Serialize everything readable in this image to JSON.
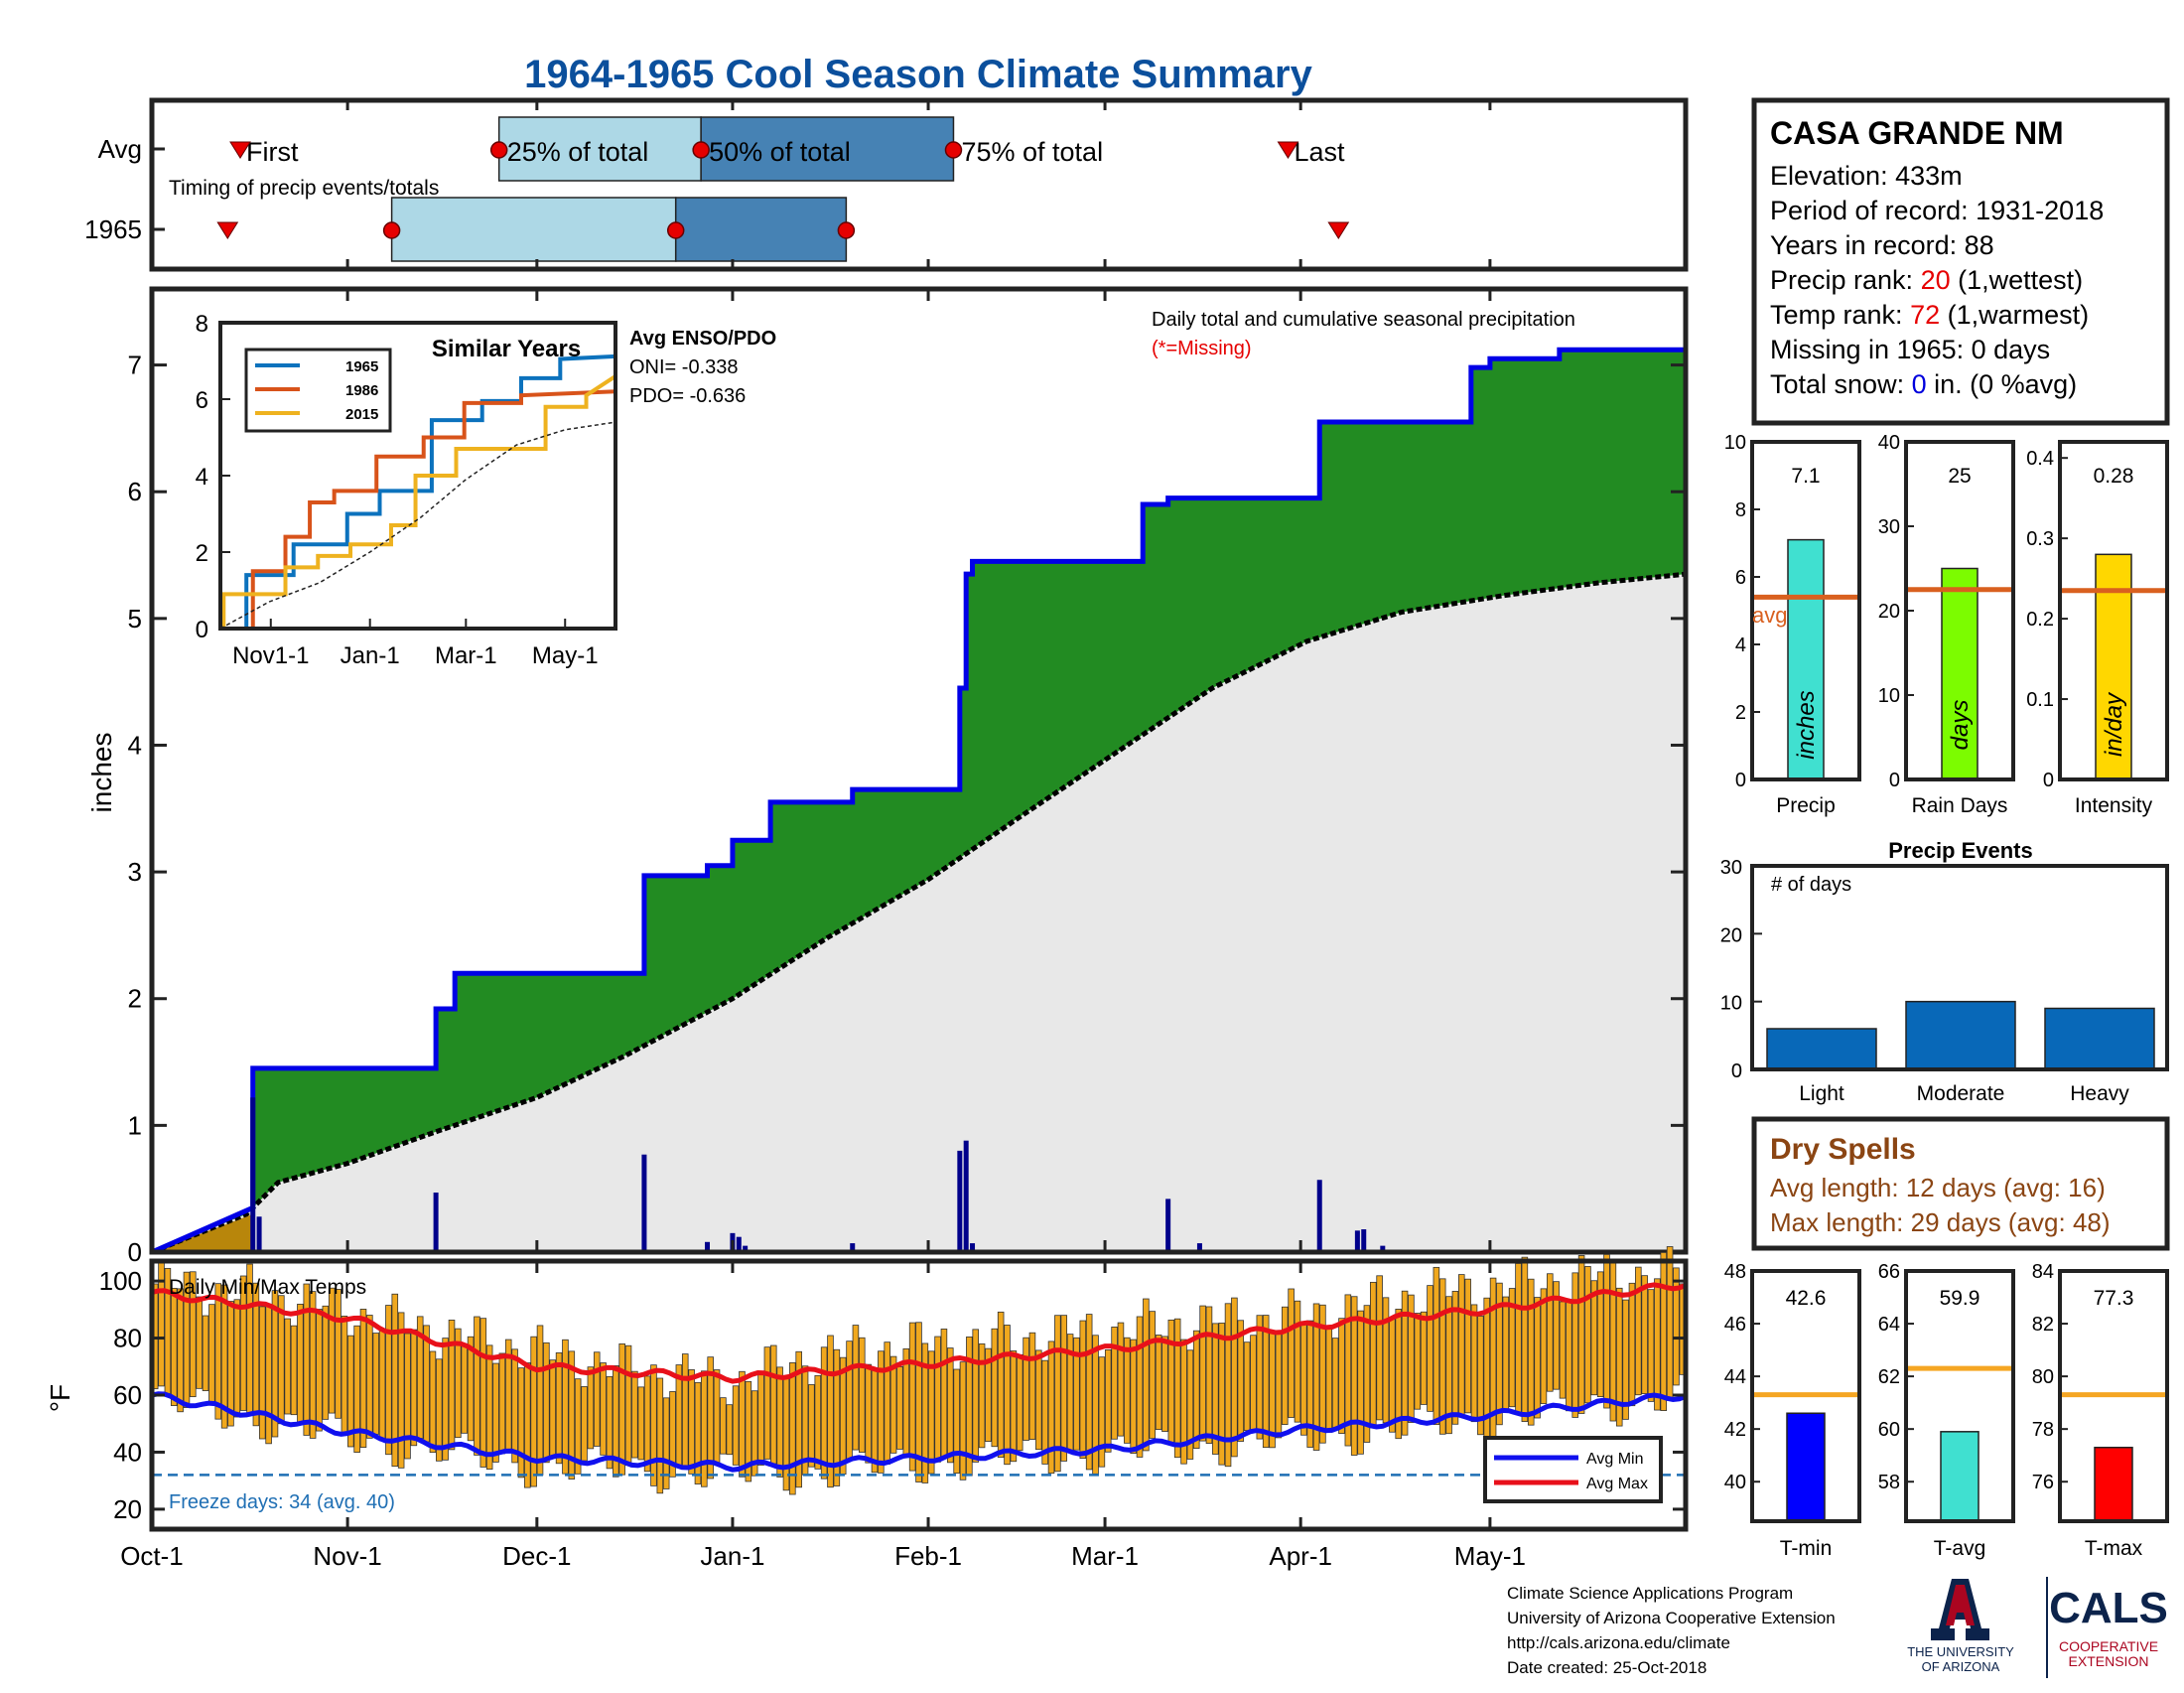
{
  "title": "1964-1965 Cool Season Climate Summary",
  "colors": {
    "title": "#0b4f9c",
    "cum_green": "#228b22",
    "cum_avg_fill": "#e8e8e8",
    "early_fill": "#b8860b",
    "line_blue": "#0000e6",
    "bar_navy": "#00008b",
    "temp_bar": "#f0a81e",
    "avg_max": "#e8101a",
    "avg_min": "#1010ee",
    "freeze": "#1f6fb4",
    "timing_light": "#add8e6",
    "timing_dark": "#4682b4",
    "marker_red": "#e60000",
    "rank_red": "#e60000",
    "snow_blue": "#0000dd",
    "dry_brown": "#8b4513",
    "avg_line_precip": "#d9601f",
    "avg_line_temp": "#f5a623",
    "precip_bar": "#40e0d0",
    "raindays_bar": "#7cfc00",
    "intensity_bar": "#ffd700",
    "event_bar": "#0868b8",
    "tmin_bar": "#0000ff",
    "tavg_bar": "#40e0d0",
    "tmax_bar": "#ff0000",
    "sim_1965": "#0c72bd",
    "sim_1986": "#d8531a",
    "sim_2015": "#eeb21f",
    "ua_red": "#ab0520",
    "ua_navy": "#0c234b"
  },
  "timing": {
    "rows": [
      "Avg",
      "1965"
    ],
    "avg_labels": [
      "First",
      "25% of total",
      "50% of total",
      "75% of total",
      "Last"
    ],
    "subtitle": "Timing of precip events/totals",
    "avg_days": {
      "first": 14,
      "q25": 55,
      "q50": 87,
      "q75": 127,
      "last": 180
    },
    "yr_days": {
      "first": 12,
      "q25": 38,
      "q50": 83,
      "q75": 110,
      "last": 188
    }
  },
  "station": {
    "name": "CASA GRANDE NM",
    "elevation": "Elevation: 433m",
    "period": "Period of record: 1931-2018",
    "years": "Years in record: 88",
    "precip_rank_pre": "Precip rank: ",
    "precip_rank": "20",
    "precip_rank_post": " (1,wettest)",
    "temp_rank_pre": "Temp rank: ",
    "temp_rank": "72",
    "temp_rank_post": " (1,warmest)",
    "missing": "Missing in 1965: 0 days",
    "snow_pre": "Total snow: ",
    "snow_val": "0",
    "snow_post": " in. (0 %avg)"
  },
  "main": {
    "ylabel": "inches",
    "note": "Daily total and cumulative seasonal precipitation",
    "missing_note": "(*=Missing)",
    "yticks": [
      "0",
      "1",
      "2",
      "3",
      "4",
      "5",
      "6",
      "7"
    ],
    "xticks": [
      "Oct-1",
      "Nov-1",
      "Dec-1",
      "Jan-1",
      "Feb-1",
      "Mar-1",
      "Apr-1",
      "May-1"
    ]
  },
  "inset": {
    "title": "Similar Years",
    "legend": [
      "1965",
      "1986",
      "2015"
    ],
    "yticks": [
      "0",
      "2",
      "4",
      "6",
      "8"
    ],
    "xticks": [
      "Nov1-1",
      "Jan-1",
      "Mar-1",
      "May-1"
    ],
    "enso_title": "Avg ENSO/PDO",
    "oni": "ONI= -0.338",
    "pdo": "PDO= -0.636"
  },
  "temps": {
    "title": "Daily Min/Max Temps",
    "ylabel": "°F",
    "yticks": [
      "20",
      "40",
      "60",
      "80",
      "100"
    ],
    "freeze_label": "Freeze days: 34 (avg. 40)",
    "freeze_line": 32,
    "legend": [
      "Avg Min",
      "Avg Max"
    ]
  },
  "bars_summary": {
    "precip": {
      "label": "Precip",
      "value": "7.1",
      "vertical": "inches",
      "ticks": [
        "0",
        "2",
        "4",
        "6",
        "8",
        "10"
      ],
      "avg_text": "avg"
    },
    "raindays": {
      "label": "Rain Days",
      "value": "25",
      "vertical": "days",
      "ticks": [
        "0",
        "10",
        "20",
        "30",
        "40"
      ]
    },
    "intensity": {
      "label": "Intensity",
      "value": "0.28",
      "vertical": "in/day",
      "ticks": [
        "0",
        "0.1",
        "0.2",
        "0.3",
        "0.4"
      ]
    }
  },
  "events": {
    "title": "Precip Events",
    "subtitle": "# of days",
    "ticks": [
      "0",
      "10",
      "20",
      "30"
    ],
    "categories": [
      "Light",
      "Moderate",
      "Heavy"
    ]
  },
  "dry": {
    "title": "Dry Spells",
    "avg": "Avg length: 12 days (avg: 16)",
    "max": "Max length: 29 days (avg: 48)"
  },
  "temp_summary": {
    "tmin": {
      "label": "T-min",
      "value": "42.6",
      "ticks": [
        "40",
        "42",
        "44",
        "46",
        "48"
      ]
    },
    "tavg": {
      "label": "T-avg",
      "value": "59.9",
      "ticks": [
        "58",
        "60",
        "62",
        "64",
        "66"
      ]
    },
    "tmax": {
      "label": "T-max",
      "value": "77.3",
      "ticks": [
        "76",
        "78",
        "80",
        "82",
        "84"
      ]
    }
  },
  "footer": {
    "lines": [
      "Climate Science Applications Program",
      "University of Arizona Cooperative Extension",
      "http://cals.arizona.edu/climate",
      " Date created: 25-Oct-2018"
    ],
    "ua_line1": "THE UNIVERSITY",
    "ua_line2": "OF ARIZONA",
    "cals": "CALS",
    "coop1": "COOPERATIVE",
    "coop2": "EXTENSION"
  },
  "chart_data": [
    {
      "type": "area",
      "title": "Daily total and cumulative seasonal precipitation",
      "ylabel": "inches",
      "ylim": [
        0,
        7.6
      ],
      "x_unit": "day of season (0 = Oct-1)",
      "xlim": [
        0,
        243
      ],
      "series": [
        {
          "name": "1965",
          "x": [
            0,
            16,
            16,
            45,
            45,
            48,
            48,
            78,
            78,
            88,
            88,
            92,
            92,
            98,
            98,
            111,
            111,
            128,
            128,
            129,
            129,
            130,
            130,
            157,
            157,
            161,
            161,
            185,
            185,
            209,
            209,
            212,
            212,
            223,
            223,
            243
          ],
          "y": [
            0,
            0.35,
            1.45,
            1.45,
            1.92,
            1.92,
            2.2,
            2.2,
            2.97,
            2.97,
            3.05,
            3.05,
            3.25,
            3.25,
            3.55,
            3.55,
            3.65,
            3.65,
            4.45,
            4.45,
            5.35,
            5.35,
            5.45,
            5.45,
            5.9,
            5.9,
            5.95,
            5.95,
            6.55,
            6.55,
            6.98,
            6.98,
            7.05,
            7.05,
            7.12,
            7.12
          ]
        },
        {
          "x": [
            0,
            15,
            20,
            31,
            45,
            61,
            75,
            92,
            107,
            123,
            138,
            153,
            168,
            183,
            198,
            214,
            229,
            243
          ],
          "y": [
            0,
            0.3,
            0.55,
            0.7,
            0.95,
            1.22,
            1.55,
            2.0,
            2.48,
            2.94,
            3.45,
            3.95,
            4.45,
            4.82,
            5.05,
            5.18,
            5.28,
            5.35
          ]
        }
      ],
      "daily_bars": {
        "x": [
          16,
          17,
          45,
          78,
          88,
          92,
          93,
          94,
          111,
          128,
          129,
          130,
          161,
          166,
          185,
          191,
          192,
          195
        ],
        "y": [
          1.22,
          0.28,
          0.47,
          0.77,
          0.08,
          0.15,
          0.12,
          0.05,
          0.07,
          0.8,
          0.88,
          0.07,
          0.42,
          0.07,
          0.57,
          0.17,
          0.18,
          0.05
        ]
      }
    },
    {
      "type": "line",
      "title": "Similar Years",
      "ylim": [
        0,
        8
      ],
      "x_unit": "day of season (0 = Oct-1)",
      "xlim": [
        0,
        243
      ],
      "series": [
        {
          "name": "1965",
          "x": [
            0,
            16,
            16,
            45,
            45,
            78,
            78,
            98,
            98,
            130,
            130,
            161,
            161,
            185,
            185,
            209,
            209,
            243
          ],
          "y": [
            0,
            0,
            1.4,
            1.4,
            2.2,
            2.2,
            3.0,
            3.0,
            3.6,
            3.6,
            5.45,
            5.45,
            5.95,
            5.95,
            6.55,
            6.55,
            7.05,
            7.12
          ]
        },
        {
          "name": "1986",
          "x": [
            0,
            20,
            20,
            40,
            40,
            55,
            55,
            70,
            70,
            96,
            96,
            125,
            125,
            150,
            150,
            185,
            185,
            243
          ],
          "y": [
            0,
            0,
            1.5,
            1.5,
            2.4,
            2.4,
            3.3,
            3.3,
            3.6,
            3.6,
            4.5,
            4.5,
            5.0,
            5.0,
            5.9,
            5.9,
            6.1,
            6.2
          ]
        },
        {
          "name": "2015",
          "x": [
            0,
            2,
            2,
            40,
            40,
            60,
            60,
            80,
            80,
            105,
            105,
            120,
            120,
            145,
            145,
            200,
            200,
            225,
            225,
            243
          ],
          "y": [
            0,
            0,
            0.9,
            0.9,
            1.6,
            1.6,
            1.9,
            1.9,
            2.2,
            2.2,
            2.7,
            2.7,
            4.0,
            4.0,
            4.7,
            4.7,
            5.8,
            5.8,
            6.1,
            6.6
          ]
        },
        {
          "x": [
            0,
            30,
            61,
            92,
            123,
            151,
            182,
            212,
            243
          ],
          "y": [
            0,
            0.7,
            1.2,
            2.0,
            2.9,
            3.9,
            4.8,
            5.2,
            5.4
          ]
        }
      ]
    },
    {
      "type": "line",
      "title": "Daily Min/Max Temps",
      "ylabel": "°F",
      "ylim": [
        13,
        107
      ],
      "x_unit": "day of season (0 = Oct-1)",
      "xlim": [
        0,
        243
      ],
      "series": [
        {
          "name": "Avg Max",
          "x": [
            0,
            31,
            61,
            92,
            123,
            151,
            182,
            212,
            243
          ],
          "y": [
            96,
            87,
            70,
            66,
            71,
            76,
            84,
            90,
            99
          ]
        },
        {
          "name": "Avg Min",
          "x": [
            0,
            31,
            61,
            92,
            123,
            151,
            182,
            212,
            243
          ],
          "y": [
            60,
            47,
            38,
            35,
            38,
            41,
            48,
            53,
            60
          ]
        },
        {
          "name": "Max envelope",
          "x": [
            0,
            15,
            30,
            45,
            60,
            75,
            92,
            107,
            123,
            138,
            153,
            168,
            183,
            198,
            213,
            228,
            243
          ],
          "y": [
            99,
            96,
            90,
            82,
            76,
            69,
            65,
            75,
            78,
            80,
            83,
            86,
            88,
            95,
            98,
            102,
            103
          ]
        },
        {
          "name": "Min envelope",
          "x": [
            0,
            15,
            30,
            45,
            60,
            75,
            92,
            107,
            123,
            138,
            153,
            168,
            183,
            198,
            213,
            228,
            243
          ],
          "y": [
            58,
            52,
            45,
            40,
            35,
            34,
            32,
            33,
            36,
            38,
            40,
            42,
            45,
            48,
            52,
            56,
            60
          ]
        }
      ]
    },
    {
      "type": "bar",
      "title": "Season totals",
      "categories": [
        "Precip",
        "Rain Days",
        "Intensity"
      ],
      "values": [
        7.1,
        25,
        0.28
      ],
      "averages": [
        5.4,
        22.5,
        0.235
      ],
      "ylim": [
        [
          0,
          10
        ],
        [
          0,
          40
        ],
        [
          0,
          0.42
        ]
      ]
    },
    {
      "type": "bar",
      "title": "Precip Events",
      "categories": [
        "Light",
        "Moderate",
        "Heavy"
      ],
      "values": [
        6,
        10,
        9
      ],
      "ylim": [
        0,
        30
      ]
    },
    {
      "type": "bar",
      "title": "Temperature summary",
      "categories": [
        "T-min",
        "T-avg",
        "T-max"
      ],
      "values": [
        42.6,
        59.9,
        77.3
      ],
      "averages": [
        43.3,
        62.3,
        79.3
      ],
      "ylim": [
        [
          38.5,
          48
        ],
        [
          56.5,
          66
        ],
        [
          74.5,
          84
        ]
      ]
    }
  ]
}
